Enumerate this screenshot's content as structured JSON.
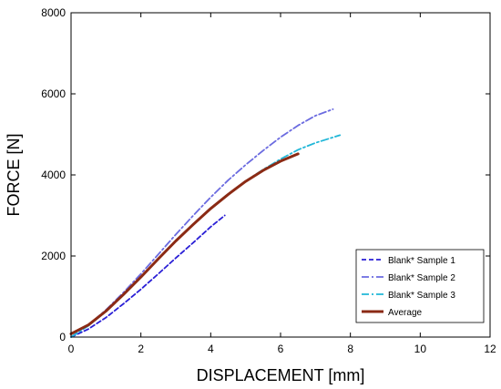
{
  "chart_data": {
    "type": "line",
    "title": "",
    "xlabel": "DISPLACEMENT [mm]",
    "ylabel": "FORCE [N]",
    "xlim": [
      0,
      12
    ],
    "ylim": [
      0,
      8000
    ],
    "x_ticks": [
      "0",
      "2",
      "4",
      "6",
      "8",
      "10",
      "12"
    ],
    "y_ticks": [
      "0",
      "2000",
      "4000",
      "6000",
      "8000"
    ],
    "grid": false,
    "legend_position": "bottom-right",
    "series": [
      {
        "name": "Blank* Sample 1",
        "color": "#2a1fd6",
        "dash": "dashed",
        "points": [
          [
            0,
            0
          ],
          [
            0.5,
            200
          ],
          [
            1,
            480
          ],
          [
            1.5,
            820
          ],
          [
            2,
            1180
          ],
          [
            2.5,
            1560
          ],
          [
            3,
            1950
          ],
          [
            3.5,
            2330
          ],
          [
            4,
            2720
          ],
          [
            4.4,
            3000
          ]
        ]
      },
      {
        "name": "Blank* Sample 2",
        "color": "#6b6be0",
        "dash": "dash-dot",
        "points": [
          [
            0,
            0
          ],
          [
            0.5,
            300
          ],
          [
            1,
            670
          ],
          [
            1.5,
            1100
          ],
          [
            2,
            1560
          ],
          [
            2.5,
            2040
          ],
          [
            3,
            2530
          ],
          [
            3.5,
            3000
          ],
          [
            4,
            3450
          ],
          [
            4.5,
            3870
          ],
          [
            5,
            4250
          ],
          [
            5.5,
            4600
          ],
          [
            6,
            4930
          ],
          [
            6.5,
            5220
          ],
          [
            7,
            5460
          ],
          [
            7.5,
            5620
          ]
        ]
      },
      {
        "name": "Blank* Sample 3",
        "color": "#21b7d8",
        "dash": "dash-dot",
        "points": [
          [
            0,
            0
          ],
          [
            0.5,
            280
          ],
          [
            1,
            630
          ],
          [
            1.5,
            1040
          ],
          [
            2,
            1480
          ],
          [
            2.5,
            1930
          ],
          [
            3,
            2380
          ],
          [
            3.5,
            2790
          ],
          [
            4,
            3180
          ],
          [
            4.5,
            3530
          ],
          [
            5,
            3850
          ],
          [
            5.5,
            4130
          ],
          [
            6,
            4390
          ],
          [
            6.5,
            4620
          ],
          [
            7,
            4790
          ],
          [
            7.7,
            4980
          ]
        ]
      },
      {
        "name": "Average",
        "color": "#8b2a14",
        "dash": "solid",
        "points": [
          [
            0,
            80
          ],
          [
            0.5,
            300
          ],
          [
            1,
            640
          ],
          [
            1.5,
            1050
          ],
          [
            2,
            1480
          ],
          [
            2.5,
            1930
          ],
          [
            3,
            2370
          ],
          [
            3.5,
            2780
          ],
          [
            4,
            3170
          ],
          [
            4.5,
            3520
          ],
          [
            5,
            3840
          ],
          [
            5.5,
            4110
          ],
          [
            6,
            4340
          ],
          [
            6.5,
            4520
          ]
        ]
      }
    ]
  }
}
